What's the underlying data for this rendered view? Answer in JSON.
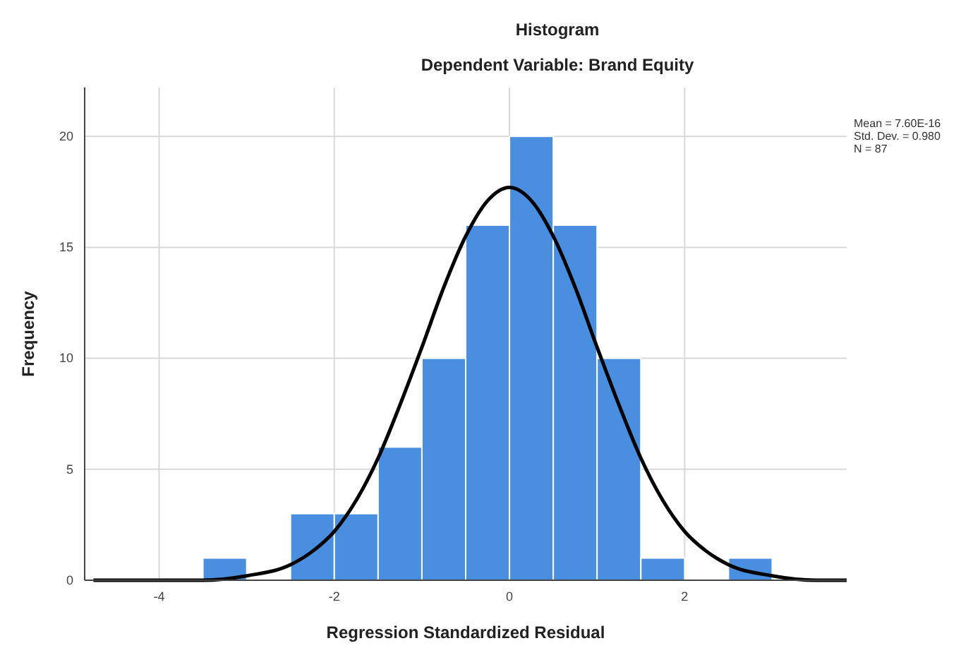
{
  "chart_data": {
    "type": "histogram",
    "title": "Histogram",
    "subtitle": "Dependent Variable: Brand Equity",
    "xlabel": "Regression Standardized Residual",
    "ylabel": "Frequency",
    "bins": [
      -3.5,
      -3,
      -2.5,
      -2,
      -1.5,
      -1,
      -0.5,
      0,
      0.5,
      1,
      1.5,
      2,
      2.5,
      3
    ],
    "values": [
      1,
      0,
      3,
      3,
      6,
      10,
      16,
      20,
      16,
      10,
      1,
      0,
      1
    ],
    "color": "#4a8ee0",
    "series": [
      {
        "type": "line",
        "color": "#000000",
        "x": [
          -4.75,
          -4,
          -3.5,
          -3,
          -2.5,
          -2.25,
          -2,
          -1.75,
          -1.5,
          -1.25,
          -1,
          -0.75,
          -0.5,
          -0.25,
          0,
          0.25,
          0.5,
          0.75,
          1,
          1.25,
          1.5,
          1.75,
          2,
          2.25,
          2.5,
          3,
          3.5,
          3.85
        ],
        "values": [
          0,
          0,
          0,
          0.2,
          0.7,
          1.3,
          2.2,
          3.6,
          5.5,
          7.9,
          10.5,
          13.2,
          15.5,
          17.1,
          17.7,
          17.1,
          15.5,
          13.2,
          10.5,
          7.9,
          5.5,
          3.6,
          2.2,
          1.3,
          0.7,
          0.2,
          0,
          0
        ]
      }
    ],
    "xlim": [
      -4.85,
      3.85
    ],
    "xticks": [
      -4,
      -2,
      0,
      2
    ],
    "ylim": [
      0,
      22.2
    ],
    "yticks": [
      0,
      5,
      10,
      15,
      20
    ],
    "grid": true,
    "annotations": [
      "Mean = 7.60E-16",
      "Std. Dev. = 0.980",
      "N = 87"
    ]
  }
}
